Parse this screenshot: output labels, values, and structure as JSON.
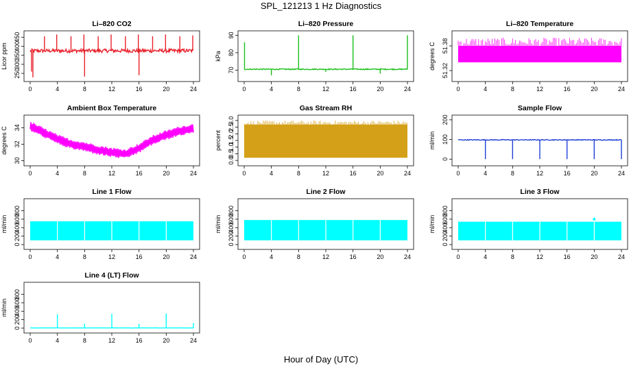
{
  "page": {
    "title": "SPL_121213  1 Hz Diagnostics",
    "xlabel": "Hour of Day (UTC)"
  },
  "chart_data": [
    {
      "id": "co2",
      "type": "line",
      "title": "Li–820 CO2",
      "ylabel": "Licor ppm",
      "color": "#e8202a",
      "xlim": [
        0,
        24
      ],
      "ylim": [
        220,
        470
      ],
      "xticks": [
        "0",
        "4",
        "8",
        "12",
        "16",
        "20",
        "24"
      ],
      "yticks": [
        250,
        300,
        350,
        400,
        450
      ],
      "baseline": 375,
      "noise": 10,
      "spikes": [
        [
          0.2,
          260
        ],
        [
          0.4,
          228
        ],
        [
          2.1,
          455
        ],
        [
          3.9,
          465
        ],
        [
          6.0,
          455
        ],
        [
          7.9,
          465
        ],
        [
          8.0,
          232
        ],
        [
          10.0,
          455
        ],
        [
          11.9,
          465
        ],
        [
          14.0,
          455
        ],
        [
          15.9,
          465
        ],
        [
          16.0,
          240
        ],
        [
          18.0,
          455
        ],
        [
          19.9,
          465
        ],
        [
          22.0,
          455
        ],
        [
          23.9,
          460
        ]
      ]
    },
    {
      "id": "pressure",
      "type": "line",
      "title": "Li–820 Pressure",
      "ylabel": "kPa",
      "color": "#1bbf1b",
      "xlim": [
        0,
        24
      ],
      "ylim": [
        65,
        91
      ],
      "xticks": [
        "0",
        "4",
        "8",
        "12",
        "16",
        "20",
        "24"
      ],
      "yticks": [
        70,
        80,
        90
      ],
      "baseline": 70.5,
      "noise": 0.3,
      "spikes": [
        [
          0.05,
          86
        ],
        [
          4.0,
          67
        ],
        [
          8.0,
          90
        ],
        [
          12.0,
          69
        ],
        [
          16.0,
          90
        ],
        [
          20.0,
          68
        ],
        [
          24.0,
          90
        ]
      ]
    },
    {
      "id": "licor-temp",
      "type": "band",
      "title": "Li–820 Temperature",
      "ylabel": "degrees C",
      "color": "#ff00ff",
      "xlim": [
        0,
        24
      ],
      "ylim": [
        51.3,
        51.41
      ],
      "xticks": [
        "0",
        "4",
        "8",
        "12",
        "16",
        "20",
        "24"
      ],
      "yticks": [
        51.32,
        51.38
      ],
      "band": [
        51.34,
        51.38
      ],
      "top": 51.4
    },
    {
      "id": "box-temp",
      "type": "band",
      "title": "Ambient Box Temperature",
      "ylabel": "degrees C",
      "color": "#ff00ff",
      "xlim": [
        0,
        24
      ],
      "ylim": [
        29.7,
        35.2
      ],
      "xticks": [
        "0",
        "4",
        "8",
        "12",
        "16",
        "20",
        "24"
      ],
      "yticks": [
        30,
        32,
        34
      ],
      "curve": [
        [
          0,
          34.2
        ],
        [
          2,
          33.4
        ],
        [
          4,
          32.6
        ],
        [
          6,
          32.0
        ],
        [
          8,
          31.7
        ],
        [
          10,
          31.3
        ],
        [
          12,
          31.0
        ],
        [
          14,
          30.8
        ],
        [
          16,
          31.5
        ],
        [
          18,
          32.5
        ],
        [
          20,
          33.1
        ],
        [
          22,
          33.6
        ],
        [
          24,
          33.9
        ]
      ],
      "amplitude": 0.6
    },
    {
      "id": "rh",
      "type": "band",
      "title": "Gas Stream RH",
      "ylabel": "percent",
      "color": "#d4a017",
      "xlim": [
        0,
        24
      ],
      "ylim": [
        -0.2,
        3.2
      ],
      "xticks": [
        "0",
        "4",
        "8",
        "12",
        "16",
        "20",
        "24"
      ],
      "yticks": [
        "0.0",
        "0.5",
        "1.0",
        "1.5",
        "2.0",
        "2.5",
        "3.0"
      ],
      "band": [
        0.2,
        2.7
      ],
      "top": 3.0
    },
    {
      "id": "sample-flow",
      "type": "line",
      "title": "Sample Flow",
      "ylabel": "ml/min",
      "color": "#1f3fd6",
      "xlim": [
        0,
        24
      ],
      "ylim": [
        -20,
        210
      ],
      "xticks": [
        "0",
        "4",
        "8",
        "12",
        "16",
        "20",
        "24"
      ],
      "yticks": [
        0,
        100,
        200
      ],
      "baseline": 98,
      "noise": 2,
      "spikes": [
        [
          4,
          0
        ],
        [
          8,
          0
        ],
        [
          12,
          0
        ],
        [
          16,
          0
        ],
        [
          20,
          0
        ],
        [
          24,
          0
        ]
      ]
    },
    {
      "id": "line1",
      "type": "band",
      "title": "Line 1 Flow",
      "ylabel": "ml/min",
      "color": "#00ffff",
      "xlim": [
        0,
        24
      ],
      "ylim": [
        -50,
        1020
      ],
      "xticks": [
        "0",
        "4",
        "8",
        "12",
        "16",
        "20",
        "24"
      ],
      "yticks": [
        0,
        200,
        400,
        600,
        800
      ],
      "band": [
        100,
        550
      ],
      "gaps": [
        4,
        8,
        12,
        16,
        20
      ]
    },
    {
      "id": "line2",
      "type": "band",
      "title": "Line 2 Flow",
      "ylabel": "ml/min",
      "color": "#00ffff",
      "xlim": [
        0,
        24
      ],
      "ylim": [
        -50,
        1020
      ],
      "xticks": [
        "0",
        "4",
        "8",
        "12",
        "16",
        "20",
        "24"
      ],
      "yticks": [
        0,
        200,
        400,
        600,
        800
      ],
      "band": [
        100,
        580
      ],
      "gaps": [
        4,
        8,
        12,
        16,
        20
      ]
    },
    {
      "id": "line3",
      "type": "band",
      "title": "Line 3 Flow",
      "ylabel": "ml/min",
      "color": "#00ffff",
      "xlim": [
        0,
        24
      ],
      "ylim": [
        -50,
        1020
      ],
      "xticks": [
        "0",
        "4",
        "8",
        "12",
        "16",
        "20",
        "24"
      ],
      "yticks": [
        0,
        200,
        400,
        600,
        800
      ],
      "band": [
        100,
        540
      ],
      "gaps": [
        4,
        8,
        12,
        16,
        20
      ],
      "bump": [
        20,
        600
      ]
    },
    {
      "id": "line4",
      "type": "line",
      "title": "Line 4 (LT) Flow",
      "ylabel": "ml/min",
      "color": "#00ffff",
      "xlim": [
        0,
        24
      ],
      "ylim": [
        -50,
        1020
      ],
      "xticks": [
        "0",
        "4",
        "8",
        "12",
        "16",
        "20",
        "24"
      ],
      "yticks": [
        0,
        200,
        400,
        600,
        800
      ],
      "baseline": 5,
      "noise": 2,
      "spikes": [
        [
          4,
          330
        ],
        [
          8,
          110
        ],
        [
          12,
          340
        ],
        [
          16,
          100
        ],
        [
          20,
          350
        ],
        [
          24,
          120
        ]
      ]
    }
  ]
}
